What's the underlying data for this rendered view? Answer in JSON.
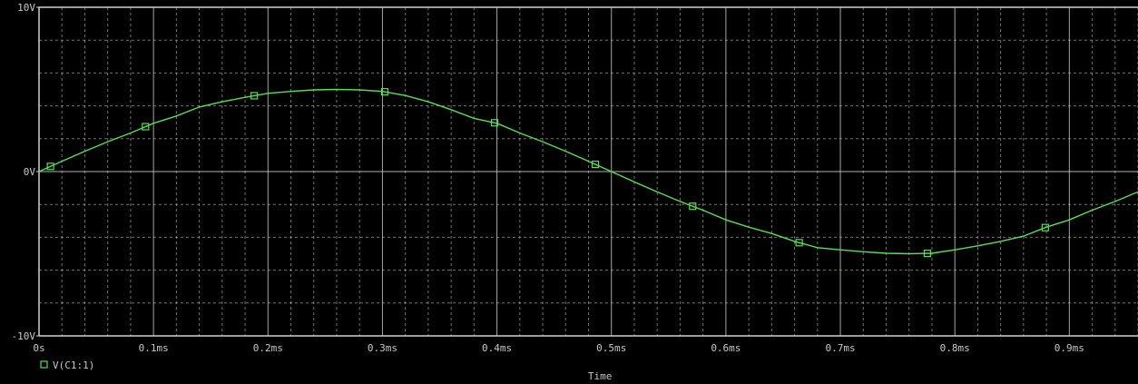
{
  "chart_data": {
    "type": "line",
    "xlabel": "Time",
    "ylabel": "",
    "xlim": [
      0,
      0.96
    ],
    "ylim": [
      -10,
      10
    ],
    "x_unit": "ms",
    "x_ticks": [
      {
        "value": 0,
        "label": "0s"
      },
      {
        "value": 0.1,
        "label": "0.1ms"
      },
      {
        "value": 0.2,
        "label": "0.2ms"
      },
      {
        "value": 0.3,
        "label": "0.3ms"
      },
      {
        "value": 0.4,
        "label": "0.4ms"
      },
      {
        "value": 0.5,
        "label": "0.5ms"
      },
      {
        "value": 0.6,
        "label": "0.6ms"
      },
      {
        "value": 0.7,
        "label": "0.7ms"
      },
      {
        "value": 0.8,
        "label": "0.8ms"
      },
      {
        "value": 0.9,
        "label": "0.9ms"
      }
    ],
    "y_ticks": [
      {
        "value": 10,
        "label": "10V"
      },
      {
        "value": 0,
        "label": "0V"
      },
      {
        "value": -10,
        "label": "-10V"
      }
    ],
    "grid": true,
    "legend": "bottom-left",
    "series": [
      {
        "name": "V(C1:1)",
        "marker": "square",
        "x": [
          0,
          0.02,
          0.04,
          0.06,
          0.08,
          0.1,
          0.12,
          0.14,
          0.16,
          0.18,
          0.2,
          0.22,
          0.24,
          0.26,
          0.28,
          0.3,
          0.32,
          0.34,
          0.36,
          0.38,
          0.4,
          0.42,
          0.44,
          0.46,
          0.48,
          0.5,
          0.52,
          0.54,
          0.56,
          0.58,
          0.6,
          0.62,
          0.64,
          0.66,
          0.68,
          0.7,
          0.72,
          0.74,
          0.76,
          0.78,
          0.8,
          0.82,
          0.84,
          0.86,
          0.88,
          0.9,
          0.92,
          0.94,
          0.96
        ],
        "y": [
          0.0,
          0.63,
          1.24,
          1.82,
          2.35,
          2.94,
          3.38,
          3.93,
          4.25,
          4.52,
          4.76,
          4.88,
          4.97,
          5.0,
          4.97,
          4.88,
          4.63,
          4.25,
          3.77,
          3.24,
          2.94,
          2.35,
          1.82,
          1.24,
          0.63,
          0.0,
          -0.63,
          -1.24,
          -1.82,
          -2.35,
          -2.94,
          -3.38,
          -3.77,
          -4.25,
          -4.63,
          -4.76,
          -4.88,
          -4.97,
          -5.0,
          -4.97,
          -4.76,
          -4.52,
          -4.25,
          -3.93,
          -3.38,
          -2.94,
          -2.35,
          -1.82,
          -1.24
        ],
        "markers_x": [
          0.01,
          0.093,
          0.188,
          0.302,
          0.398,
          0.486,
          0.571,
          0.664,
          0.776,
          0.879
        ],
        "color": "#55e055",
        "marker_color": "#55e055"
      }
    ],
    "colors": {
      "background": "#000000",
      "grid": "#cfcfcf",
      "axis": "#d0d0d0",
      "text": "#c8c8c8"
    }
  }
}
